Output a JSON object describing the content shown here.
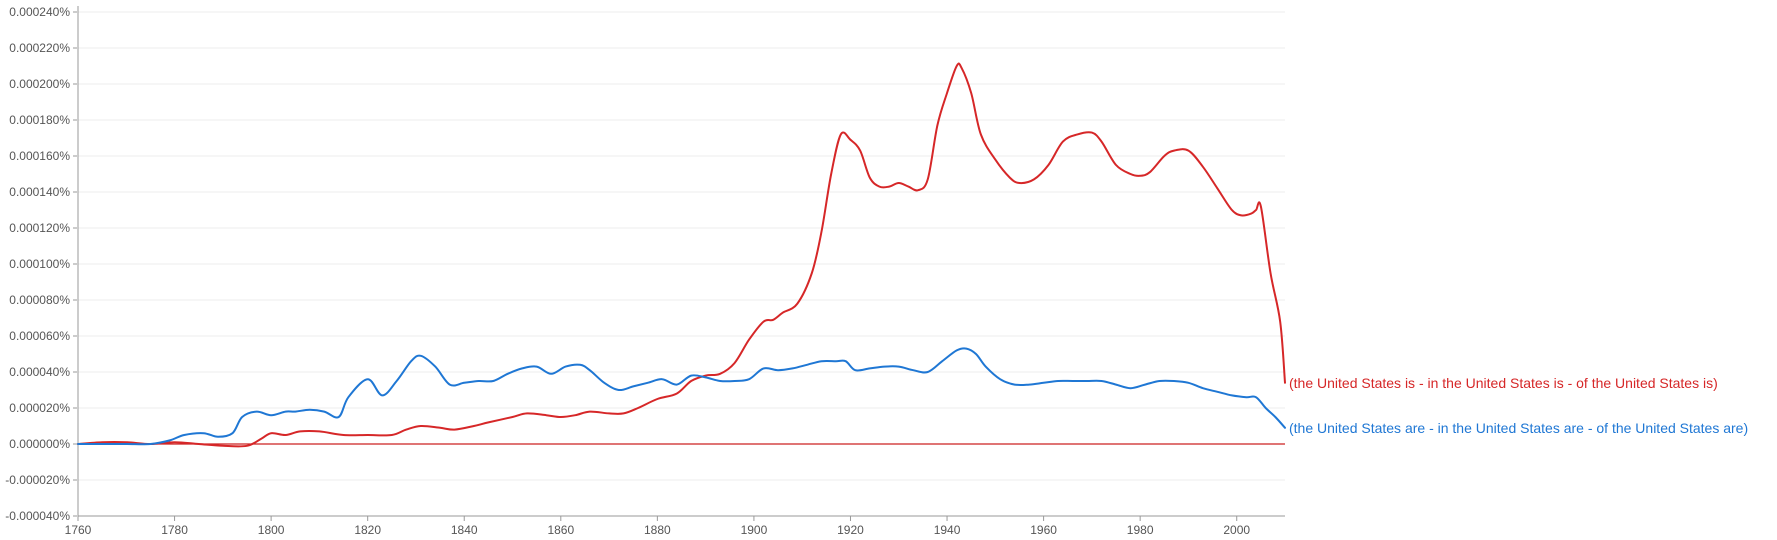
{
  "chart_data": {
    "type": "line",
    "title": "",
    "xlabel": "",
    "ylabel": "",
    "xlim": [
      1760,
      2010
    ],
    "ylim": [
      -4e-06,
      2.4e-05
    ],
    "grid": true,
    "legend": "right-end labels",
    "y_ticks": [
      {
        "value": 2.4e-05,
        "label": "0.000240%"
      },
      {
        "value": 2.2e-05,
        "label": "0.000220%"
      },
      {
        "value": 2e-05,
        "label": "0.000200%"
      },
      {
        "value": 1.8e-05,
        "label": "0.000180%"
      },
      {
        "value": 1.6e-05,
        "label": "0.000160%"
      },
      {
        "value": 1.4e-05,
        "label": "0.000140%"
      },
      {
        "value": 1.2e-05,
        "label": "0.000120%"
      },
      {
        "value": 1e-05,
        "label": "0.000100%"
      },
      {
        "value": 8e-06,
        "label": "0.000080%"
      },
      {
        "value": 6e-06,
        "label": "0.000060%"
      },
      {
        "value": 4e-06,
        "label": "0.000040%"
      },
      {
        "value": 2e-06,
        "label": "0.000020%"
      },
      {
        "value": 0.0,
        "label": "0.000000%"
      },
      {
        "value": -2e-06,
        "label": "-0.000020%"
      },
      {
        "value": -4e-06,
        "label": "-0.000040%"
      }
    ],
    "x_ticks": [
      {
        "value": 1760,
        "label": "1760"
      },
      {
        "value": 1780,
        "label": "1780"
      },
      {
        "value": 1800,
        "label": "1800"
      },
      {
        "value": 1820,
        "label": "1820"
      },
      {
        "value": 1840,
        "label": "1840"
      },
      {
        "value": 1860,
        "label": "1860"
      },
      {
        "value": 1880,
        "label": "1880"
      },
      {
        "value": 1900,
        "label": "1900"
      },
      {
        "value": 1920,
        "label": "1920"
      },
      {
        "value": 1940,
        "label": "1940"
      },
      {
        "value": 1960,
        "label": "1960"
      },
      {
        "value": 1980,
        "label": "1980"
      },
      {
        "value": 2000,
        "label": "2000"
      }
    ],
    "baseline": {
      "value": 0,
      "color": "#cc2222"
    },
    "series": [
      {
        "name": "(the United States is - in the United States is - of the United States is)",
        "color": "#d62728",
        "x": [
          1760,
          1765,
          1770,
          1775,
          1780,
          1785,
          1790,
          1795,
          1798,
          1800,
          1803,
          1806,
          1810,
          1815,
          1820,
          1825,
          1828,
          1831,
          1835,
          1838,
          1842,
          1845,
          1850,
          1853,
          1857,
          1860,
          1863,
          1866,
          1870,
          1873,
          1876,
          1880,
          1884,
          1887,
          1890,
          1893,
          1896,
          1899,
          1902,
          1904,
          1906,
          1909,
          1912,
          1914,
          1916,
          1918,
          1920,
          1922,
          1924,
          1926,
          1928,
          1930,
          1932,
          1934,
          1936,
          1938,
          1940,
          1942,
          1943,
          1945,
          1947,
          1950,
          1953,
          1955,
          1958,
          1961,
          1964,
          1967,
          1970,
          1972,
          1975,
          1978,
          1980,
          1982,
          1985,
          1987,
          1990,
          1993,
          1996,
          1999,
          2001,
          2003,
          2004,
          2005,
          2007,
          2009,
          2010
        ],
        "y": [
          0.0,
          1e-07,
          1e-07,
          0.0,
          1e-07,
          0.0,
          -1e-07,
          -1e-07,
          3e-07,
          6e-07,
          5e-07,
          7e-07,
          7e-07,
          5e-07,
          5e-07,
          5e-07,
          8e-07,
          1e-06,
          9e-07,
          8e-07,
          1e-06,
          1.2e-06,
          1.5e-06,
          1.7e-06,
          1.6e-06,
          1.5e-06,
          1.6e-06,
          1.8e-06,
          1.7e-06,
          1.7e-06,
          2e-06,
          2.5e-06,
          2.8e-06,
          3.5e-06,
          3.8e-06,
          3.9e-06,
          4.5e-06,
          5.8e-06,
          6.8e-06,
          6.9e-06,
          7.3e-06,
          7.8e-06,
          9.5e-06,
          1.18e-05,
          1.5e-05,
          1.72e-05,
          1.69e-05,
          1.63e-05,
          1.48e-05,
          1.43e-05,
          1.43e-05,
          1.45e-05,
          1.43e-05,
          1.41e-05,
          1.47e-05,
          1.77e-05,
          1.95e-05,
          2.1e-05,
          2.09e-05,
          1.95e-05,
          1.72e-05,
          1.58e-05,
          1.48e-05,
          1.45e-05,
          1.47e-05,
          1.55e-05,
          1.68e-05,
          1.72e-05,
          1.73e-05,
          1.68e-05,
          1.55e-05,
          1.5e-05,
          1.49e-05,
          1.51e-05,
          1.6e-05,
          1.63e-05,
          1.63e-05,
          1.54e-05,
          1.42e-05,
          1.3e-05,
          1.27e-05,
          1.28e-05,
          1.3e-05,
          1.32e-05,
          9.5e-06,
          6.8e-06,
          3.4e-06
        ]
      },
      {
        "name": "(the United States are - in the United States are - of the United States are)",
        "color": "#1f77d4",
        "x": [
          1760,
          1765,
          1770,
          1775,
          1779,
          1782,
          1786,
          1789,
          1792,
          1794,
          1797,
          1800,
          1803,
          1805,
          1808,
          1811,
          1814,
          1816,
          1820,
          1823,
          1826,
          1829,
          1831,
          1834,
          1837,
          1840,
          1843,
          1846,
          1849,
          1852,
          1855,
          1858,
          1861,
          1864,
          1866,
          1869,
          1872,
          1875,
          1878,
          1881,
          1884,
          1887,
          1890,
          1893,
          1896,
          1899,
          1902,
          1905,
          1908,
          1911,
          1914,
          1917,
          1919,
          1921,
          1924,
          1927,
          1930,
          1933,
          1936,
          1939,
          1942,
          1944,
          1946,
          1948,
          1951,
          1954,
          1957,
          1960,
          1963,
          1966,
          1969,
          1972,
          1975,
          1978,
          1981,
          1984,
          1987,
          1990,
          1993,
          1996,
          1999,
          2002,
          2004,
          2006,
          2008,
          2010
        ],
        "y": [
          0.0,
          0.0,
          0.0,
          0.0,
          2e-07,
          5e-07,
          6e-07,
          4e-07,
          6e-07,
          1.5e-06,
          1.8e-06,
          1.6e-06,
          1.8e-06,
          1.8e-06,
          1.9e-06,
          1.8e-06,
          1.5e-06,
          2.6e-06,
          3.6e-06,
          2.7e-06,
          3.5e-06,
          4.6e-06,
          4.9e-06,
          4.3e-06,
          3.3e-06,
          3.4e-06,
          3.5e-06,
          3.5e-06,
          3.9e-06,
          4.2e-06,
          4.3e-06,
          3.9e-06,
          4.3e-06,
          4.4e-06,
          4.1e-06,
          3.4e-06,
          3e-06,
          3.2e-06,
          3.4e-06,
          3.6e-06,
          3.3e-06,
          3.8e-06,
          3.7e-06,
          3.5e-06,
          3.5e-06,
          3.6e-06,
          4.2e-06,
          4.1e-06,
          4.2e-06,
          4.4e-06,
          4.6e-06,
          4.6e-06,
          4.6e-06,
          4.1e-06,
          4.2e-06,
          4.3e-06,
          4.3e-06,
          4.1e-06,
          4e-06,
          4.6e-06,
          5.2e-06,
          5.3e-06,
          5e-06,
          4.3e-06,
          3.6e-06,
          3.3e-06,
          3.3e-06,
          3.4e-06,
          3.5e-06,
          3.5e-06,
          3.5e-06,
          3.5e-06,
          3.3e-06,
          3.1e-06,
          3.3e-06,
          3.5e-06,
          3.5e-06,
          3.4e-06,
          3.1e-06,
          2.9e-06,
          2.7e-06,
          2.6e-06,
          2.6e-06,
          2e-06,
          1.5e-06,
          9e-07
        ]
      }
    ]
  }
}
